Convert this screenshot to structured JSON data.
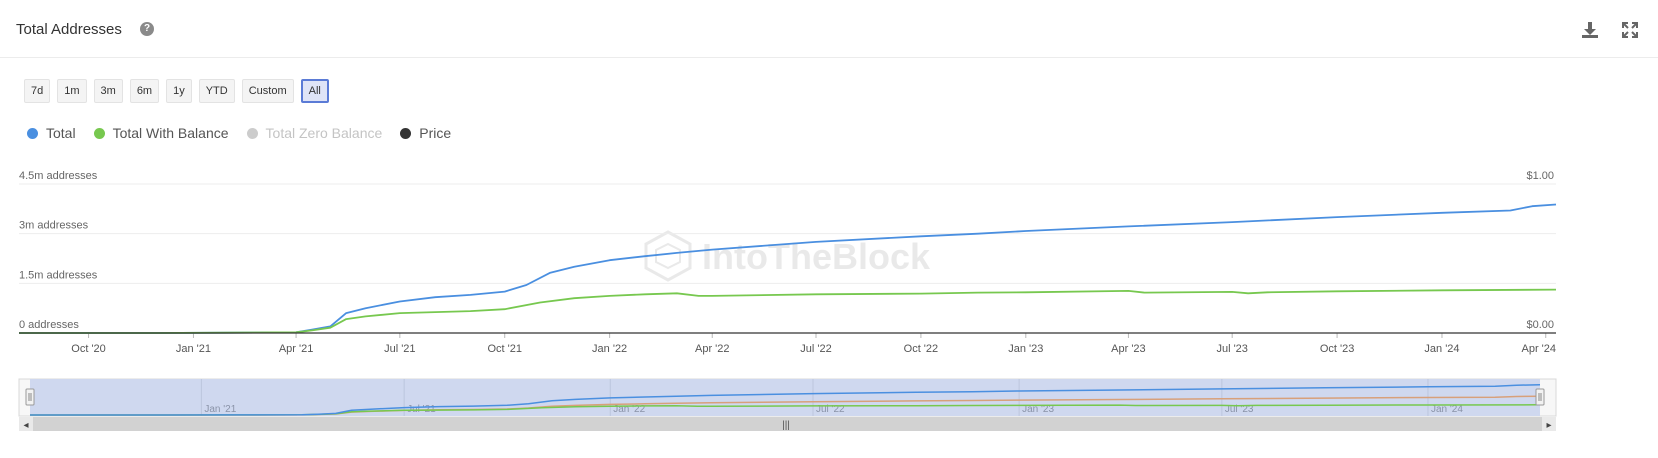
{
  "header": {
    "title": "Total Addresses",
    "help_glyph": "?",
    "download_icon": "download-icon",
    "expand_icon": "expand-icon"
  },
  "ranges": {
    "items": [
      "7d",
      "1m",
      "3m",
      "6m",
      "1y",
      "YTD",
      "Custom",
      "All"
    ],
    "active": "All"
  },
  "legend": {
    "items": [
      {
        "label": "Total",
        "color": "#4a8fe0",
        "enabled": true
      },
      {
        "label": "Total With Balance",
        "color": "#77c84f",
        "enabled": true
      },
      {
        "label": "Total Zero Balance",
        "color": "#cccccc",
        "enabled": false
      },
      {
        "label": "Price",
        "color": "#333333",
        "enabled": true
      }
    ]
  },
  "watermark": "IntoTheBlock",
  "chart_data": {
    "type": "line",
    "title": "Total Addresses",
    "y_left": {
      "ticks": [
        0,
        1.5,
        3,
        4.5
      ],
      "tick_labels": [
        "0 addresses",
        "1.5m addresses",
        "3m addresses",
        "4.5m addresses"
      ],
      "range": [
        0,
        4.5
      ],
      "unit": "millions of addresses"
    },
    "y_right": {
      "ticks": [
        0,
        1
      ],
      "tick_labels": [
        "$0.00",
        "$1.00"
      ],
      "range": [
        0,
        1
      ]
    },
    "x_range": [
      "2020-08-01",
      "2024-04-10"
    ],
    "x_ticks": [
      {
        "date": "2020-10-01",
        "label": "Oct '20"
      },
      {
        "date": "2021-01-01",
        "label": "Jan '21"
      },
      {
        "date": "2021-04-01",
        "label": "Apr '21"
      },
      {
        "date": "2021-07-01",
        "label": "Jul '21"
      },
      {
        "date": "2021-10-01",
        "label": "Oct '21"
      },
      {
        "date": "2022-01-01",
        "label": "Jan '22"
      },
      {
        "date": "2022-04-01",
        "label": "Apr '22"
      },
      {
        "date": "2022-07-01",
        "label": "Jul '22"
      },
      {
        "date": "2022-10-01",
        "label": "Oct '22"
      },
      {
        "date": "2023-01-01",
        "label": "Jan '23"
      },
      {
        "date": "2023-04-01",
        "label": "Apr '23"
      },
      {
        "date": "2023-07-01",
        "label": "Jul '23"
      },
      {
        "date": "2023-10-01",
        "label": "Oct '23"
      },
      {
        "date": "2024-01-01",
        "label": "Jan '24"
      },
      {
        "date": "2024-04-01",
        "label": "Apr '24"
      }
    ],
    "grid": true,
    "legend_position": "top-left",
    "series": [
      {
        "name": "Total",
        "color": "#4a8fe0",
        "points": [
          [
            "2020-08-01",
            0.0
          ],
          [
            "2020-12-01",
            0.0
          ],
          [
            "2021-02-01",
            0.01
          ],
          [
            "2021-04-01",
            0.02
          ],
          [
            "2021-04-15",
            0.1
          ],
          [
            "2021-05-01",
            0.2
          ],
          [
            "2021-05-15",
            0.6
          ],
          [
            "2021-06-01",
            0.75
          ],
          [
            "2021-07-01",
            0.95
          ],
          [
            "2021-08-01",
            1.08
          ],
          [
            "2021-09-01",
            1.15
          ],
          [
            "2021-10-01",
            1.25
          ],
          [
            "2021-10-20",
            1.45
          ],
          [
            "2021-11-10",
            1.82
          ],
          [
            "2021-12-01",
            2.0
          ],
          [
            "2022-01-01",
            2.2
          ],
          [
            "2022-02-01",
            2.32
          ],
          [
            "2022-03-01",
            2.42
          ],
          [
            "2022-04-01",
            2.52
          ],
          [
            "2022-07-01",
            2.75
          ],
          [
            "2022-10-01",
            2.92
          ],
          [
            "2022-11-20",
            3.0
          ],
          [
            "2023-01-01",
            3.08
          ],
          [
            "2023-04-01",
            3.22
          ],
          [
            "2023-07-01",
            3.35
          ],
          [
            "2023-10-01",
            3.5
          ],
          [
            "2024-01-01",
            3.63
          ],
          [
            "2024-03-01",
            3.7
          ],
          [
            "2024-03-20",
            3.83
          ],
          [
            "2024-04-10",
            3.88
          ]
        ]
      },
      {
        "name": "Total With Balance",
        "color": "#77c84f",
        "points": [
          [
            "2020-08-01",
            0.0
          ],
          [
            "2020-12-01",
            0.0
          ],
          [
            "2021-02-01",
            0.01
          ],
          [
            "2021-04-01",
            0.02
          ],
          [
            "2021-04-15",
            0.08
          ],
          [
            "2021-05-01",
            0.16
          ],
          [
            "2021-05-15",
            0.42
          ],
          [
            "2021-06-01",
            0.5
          ],
          [
            "2021-07-01",
            0.6
          ],
          [
            "2021-08-01",
            0.63
          ],
          [
            "2021-09-01",
            0.66
          ],
          [
            "2021-10-01",
            0.72
          ],
          [
            "2021-11-01",
            0.92
          ],
          [
            "2021-12-01",
            1.05
          ],
          [
            "2022-01-01",
            1.12
          ],
          [
            "2022-02-01",
            1.17
          ],
          [
            "2022-03-01",
            1.2
          ],
          [
            "2022-03-20",
            1.12
          ],
          [
            "2022-04-01",
            1.12
          ],
          [
            "2022-07-01",
            1.17
          ],
          [
            "2022-10-01",
            1.19
          ],
          [
            "2022-11-20",
            1.22
          ],
          [
            "2023-01-01",
            1.23
          ],
          [
            "2023-04-01",
            1.27
          ],
          [
            "2023-04-15",
            1.22
          ],
          [
            "2023-07-01",
            1.24
          ],
          [
            "2023-07-15",
            1.2
          ],
          [
            "2023-08-01",
            1.23
          ],
          [
            "2023-10-01",
            1.26
          ],
          [
            "2024-01-01",
            1.29
          ],
          [
            "2024-04-10",
            1.31
          ]
        ]
      },
      {
        "name": "Price",
        "color": "#333333",
        "points": [
          [
            "2020-08-01",
            0.0
          ],
          [
            "2024-04-10",
            0.0
          ]
        ]
      }
    ],
    "navigator": {
      "x_ticks": [
        {
          "date": "2021-01-01",
          "label": "Jan '21"
        },
        {
          "date": "2021-07-01",
          "label": "Jul '21"
        },
        {
          "date": "2022-01-01",
          "label": "Jan '22"
        },
        {
          "date": "2022-07-01",
          "label": "Jul '22"
        },
        {
          "date": "2023-01-01",
          "label": "Jan '23"
        },
        {
          "date": "2023-07-01",
          "label": "Jul '23"
        },
        {
          "date": "2024-01-01",
          "label": "Jan '24"
        }
      ],
      "selection": [
        "2020-08-01",
        "2024-04-10"
      ],
      "series_colors": [
        "#4a8fe0",
        "#77c84f",
        "#d8a07a"
      ],
      "handle_glyph": "|||",
      "left_arrow": "◂",
      "right_arrow": "▸"
    }
  }
}
